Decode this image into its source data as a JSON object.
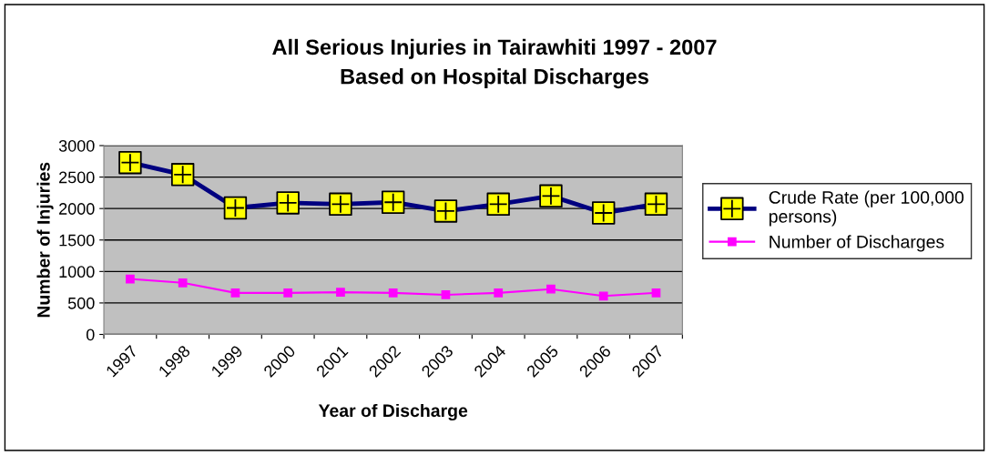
{
  "chart_data": {
    "type": "line",
    "title": "All Serious Injuries in Tairawhiti 1997 - 2007\nBased on Hospital Discharges",
    "xlabel": "Year of Discharge",
    "ylabel": "Number of Injuries",
    "categories": [
      "1997",
      "1998",
      "1999",
      "2000",
      "2001",
      "2002",
      "2003",
      "2004",
      "2005",
      "2006",
      "2007"
    ],
    "series": [
      {
        "name": "Crude Rate (per 100,000\npersons)",
        "color": "#000080",
        "marker": "cross",
        "values": [
          2730,
          2540,
          2010,
          2090,
          2070,
          2100,
          1960,
          2070,
          2200,
          1930,
          2070
        ]
      },
      {
        "name": "Number of Discharges",
        "color": "#ff00ff",
        "marker": "square",
        "values": [
          880,
          820,
          660,
          660,
          670,
          660,
          630,
          660,
          720,
          610,
          660
        ]
      }
    ],
    "ylim": [
      0,
      3000
    ],
    "yticks": [
      0,
      500,
      1000,
      1500,
      2000,
      2500,
      3000
    ],
    "grid": "y",
    "legend": "right"
  }
}
